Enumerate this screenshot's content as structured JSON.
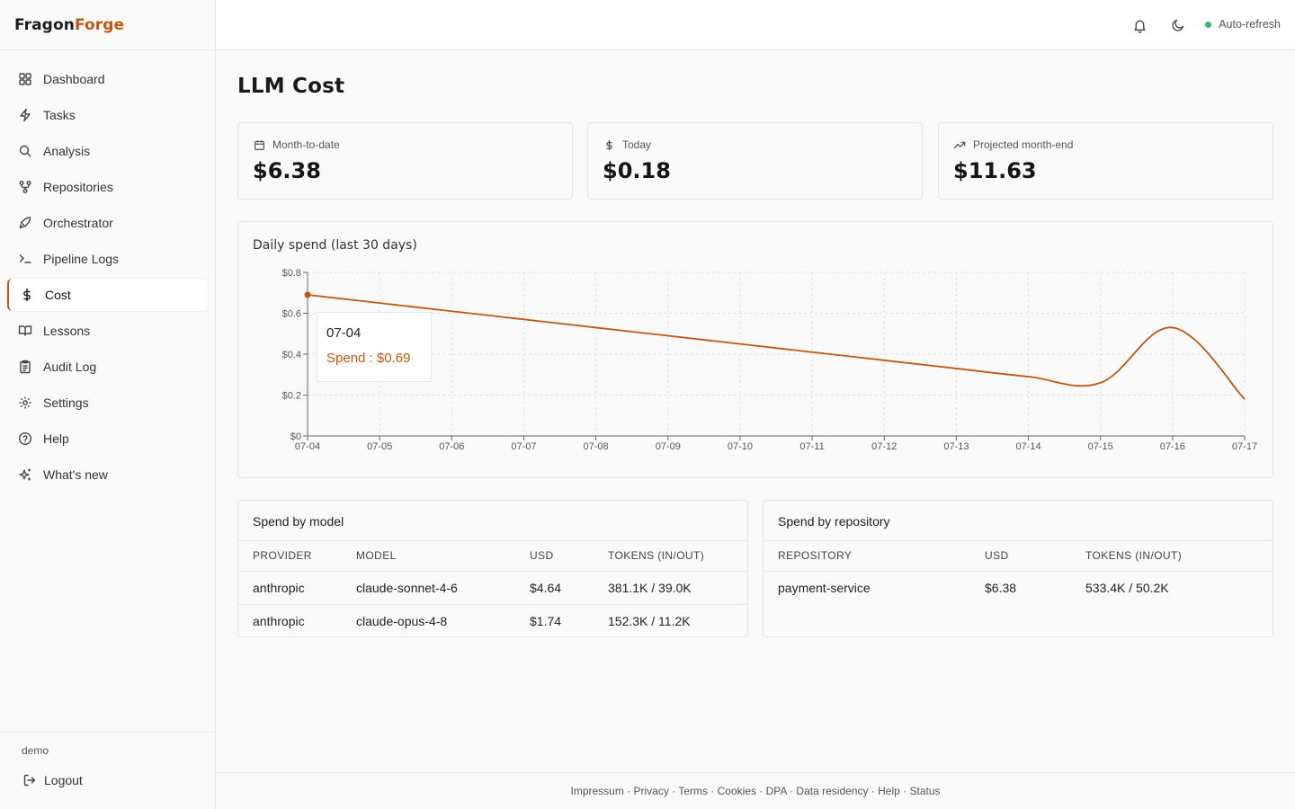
{
  "brand": {
    "part1": "Fragon",
    "part2": "Forge",
    "accent": "#c2570f"
  },
  "sidebar": {
    "items": [
      {
        "label": "Dashboard",
        "icon": "layout-grid-icon"
      },
      {
        "label": "Tasks",
        "icon": "zap-icon"
      },
      {
        "label": "Analysis",
        "icon": "search-icon"
      },
      {
        "label": "Repositories",
        "icon": "git-fork-icon"
      },
      {
        "label": "Orchestrator",
        "icon": "rocket-icon"
      },
      {
        "label": "Pipeline Logs",
        "icon": "terminal-icon"
      },
      {
        "label": "Cost",
        "icon": "dollar-icon",
        "active": true
      },
      {
        "label": "Lessons",
        "icon": "book-open-icon"
      },
      {
        "label": "Audit Log",
        "icon": "clipboard-list-icon"
      },
      {
        "label": "Settings",
        "icon": "gear-icon"
      },
      {
        "label": "Help",
        "icon": "help-circle-icon"
      },
      {
        "label": "What's new",
        "icon": "sparkles-icon"
      }
    ],
    "user": "demo",
    "logout_label": "Logout"
  },
  "topbar": {
    "auto_refresh_label": "Auto-refresh",
    "status_color": "#22c55e"
  },
  "page": {
    "title": "LLM Cost"
  },
  "cards": [
    {
      "label": "Month-to-date",
      "value": "$6.38",
      "icon": "calendar-icon"
    },
    {
      "label": "Today",
      "value": "$0.18",
      "icon": "dollar-icon"
    },
    {
      "label": "Projected month-end",
      "value": "$11.63",
      "icon": "trending-up-icon"
    }
  ],
  "chart_data": {
    "type": "line",
    "title": "Daily spend (last 30 days)",
    "x": [
      "07-04",
      "07-05",
      "07-06",
      "07-07",
      "07-08",
      "07-09",
      "07-10",
      "07-11",
      "07-12",
      "07-13",
      "07-14",
      "07-15",
      "07-16",
      "07-17"
    ],
    "series": [
      {
        "values": [
          0.69,
          0.65,
          0.61,
          0.57,
          0.53,
          0.49,
          0.45,
          0.41,
          0.37,
          0.33,
          0.29,
          0.26,
          0.53,
          0.18
        ]
      }
    ],
    "yticks": [
      "$0",
      "$0.2",
      "$0.4",
      "$0.6",
      "$0.8"
    ],
    "ylim": [
      0,
      0.8
    ],
    "grid": true,
    "color": "#c2570f",
    "tooltip": {
      "date": "07-04",
      "text": "Spend : $0.69"
    }
  },
  "by_model": {
    "title": "Spend by model",
    "headers": [
      "PROVIDER",
      "MODEL",
      "USD",
      "TOKENS (IN/OUT)"
    ],
    "rows": [
      [
        "anthropic",
        "claude-sonnet-4-6",
        "$4.64",
        "381.1K / 39.0K"
      ],
      [
        "anthropic",
        "claude-opus-4-8",
        "$1.74",
        "152.3K / 11.2K"
      ]
    ]
  },
  "by_repo": {
    "title": "Spend by repository",
    "headers": [
      "REPOSITORY",
      "USD",
      "TOKENS (IN/OUT)"
    ],
    "rows": [
      [
        "payment-service",
        "$6.38",
        "533.4K / 50.2K"
      ]
    ]
  },
  "footer": {
    "links": "Impressum · Privacy · Terms · Cookies · DPA · Data residency · Help · Status"
  }
}
